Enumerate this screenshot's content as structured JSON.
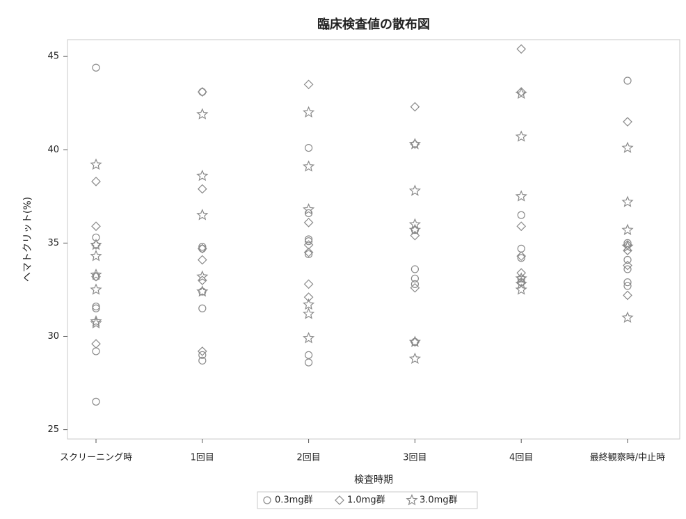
{
  "chart_data": {
    "type": "scatter",
    "title": "臨床検査値の散布図",
    "x_label": "検査時期",
    "y_label": "ヘマトクリット(%)",
    "categories": [
      "スクリーニング時",
      "1回目",
      "2回目",
      "3回目",
      "4回目",
      "最終観察時/中止時"
    ],
    "ylim": [
      24.5,
      45.9
    ],
    "yticks": [
      25,
      30,
      35,
      40,
      45
    ],
    "grid": false,
    "legend": "bottom",
    "series": [
      {
        "name": "0.3mg群",
        "color": "#8a8a8a",
        "marker": "circle",
        "values": [
          [
            44.4,
            35.3,
            31.6,
            31.5,
            29.2,
            26.5,
            33.2
          ],
          [
            43.1,
            34.8,
            34.7,
            31.5,
            28.7,
            29.0,
            32.4
          ],
          [
            40.1,
            34.4,
            35.1,
            35.2,
            29.0,
            28.6,
            36.6
          ],
          [
            35.7,
            33.6,
            33.1,
            32.8,
            29.7
          ],
          [
            36.5,
            34.7,
            34.2,
            33.1,
            32.9
          ],
          [
            43.7,
            34.1,
            33.6,
            32.9,
            32.7,
            35.0
          ]
        ]
      },
      {
        "name": "1.0mg群",
        "color": "#8a8a8a",
        "marker": "diamond",
        "values": [
          [
            38.3,
            35.9,
            33.2,
            29.6,
            34.9
          ],
          [
            43.1,
            37.9,
            34.7,
            33.0,
            34.1,
            29.2
          ],
          [
            43.5,
            36.1,
            32.8,
            32.1,
            34.5,
            34.9
          ],
          [
            42.3,
            40.3,
            35.4,
            32.6,
            29.7
          ],
          [
            45.4,
            43.1,
            35.9,
            34.3,
            33.4,
            32.9
          ],
          [
            41.5,
            34.9,
            34.6,
            33.8,
            32.2
          ]
        ]
      },
      {
        "name": "3.0mg群",
        "color": "#8a8a8a",
        "marker": "star",
        "values": [
          [
            39.2,
            34.9,
            34.3,
            33.3,
            32.5,
            30.7,
            30.8
          ],
          [
            41.9,
            38.6,
            36.5,
            33.2,
            32.4
          ],
          [
            42.0,
            39.1,
            36.8,
            31.7,
            31.2,
            29.9
          ],
          [
            40.3,
            37.8,
            36.0,
            35.7,
            29.7,
            28.8
          ],
          [
            43.0,
            40.7,
            37.5,
            32.8,
            32.5,
            33.1
          ],
          [
            40.1,
            37.2,
            35.7,
            34.8,
            31.0
          ]
        ]
      }
    ]
  }
}
